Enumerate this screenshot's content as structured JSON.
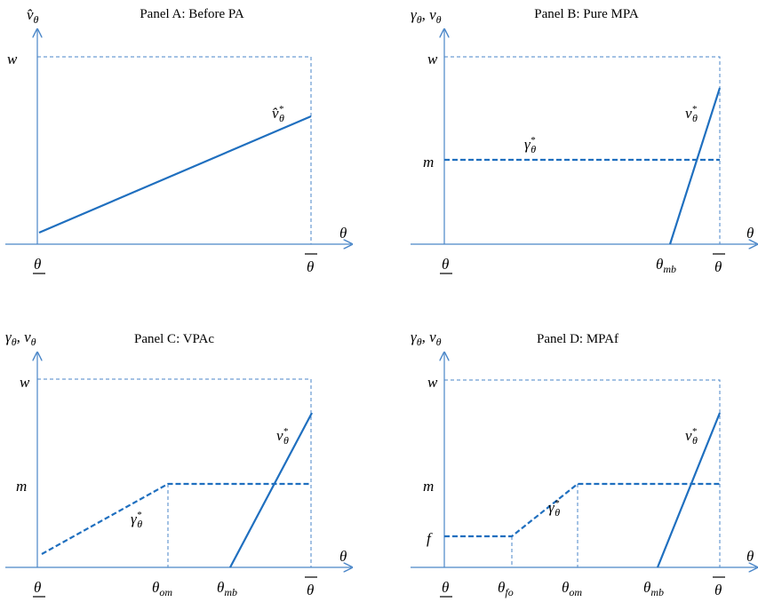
{
  "panels": {
    "a": {
      "title": "Panel A: Before PA",
      "ylabel": "v̂",
      "ylabel_sub": "θ",
      "w_label": "w",
      "curve_label": "v̂",
      "curve_sup": "*",
      "curve_sub": "θ",
      "xlabel": "θ",
      "x_low": "θ",
      "x_high": "θ"
    },
    "b": {
      "title": "Panel B: Pure MPA",
      "ylabel": "γ",
      "ylabel_sub": "θ",
      "ylabel2": ", v",
      "ylabel2_sub": "θ",
      "w_label": "w",
      "m_label": "m",
      "gamma_label": "γ",
      "gamma_sup": "*",
      "gamma_sub": "θ",
      "v_label": "v",
      "v_sup": "*",
      "v_sub": "θ",
      "xlabel": "θ",
      "x_low": "θ",
      "x_mb": "θ",
      "x_mb_sub": "mb",
      "x_high": "θ"
    },
    "c": {
      "title": "Panel C: VPAc",
      "ylabel": "γ",
      "ylabel_sub": "θ",
      "ylabel2": ", v",
      "ylabel2_sub": "θ",
      "w_label": "w",
      "m_label": "m",
      "gamma_label": "γ",
      "gamma_sup": "*",
      "gamma_sub": "θ",
      "v_label": "v",
      "v_sup": "*",
      "v_sub": "θ",
      "xlabel": "θ",
      "x_low": "θ",
      "x_om": "θ",
      "x_om_sub": "om",
      "x_mb": "θ",
      "x_mb_sub": "mb",
      "x_high": "θ"
    },
    "d": {
      "title": "Panel D: MPAf",
      "ylabel": "γ",
      "ylabel_sub": "θ",
      "ylabel2": ", v",
      "ylabel2_sub": "θ",
      "w_label": "w",
      "m_label": "m",
      "f_label": "f",
      "gamma_label": "γ",
      "gamma_sup": "*",
      "gamma_sub": "θ",
      "v_label": "v",
      "v_sup": "*",
      "v_sub": "θ",
      "xlabel": "θ",
      "x_low": "θ",
      "x_fo": "θ",
      "x_fo_sub": "fo",
      "x_om": "θ",
      "x_om_sub": "om",
      "x_mb": "θ",
      "x_mb_sub": "mb",
      "x_high": "θ"
    }
  },
  "colors": {
    "axis": "#4a86c8",
    "curve": "#1f6fbf"
  }
}
